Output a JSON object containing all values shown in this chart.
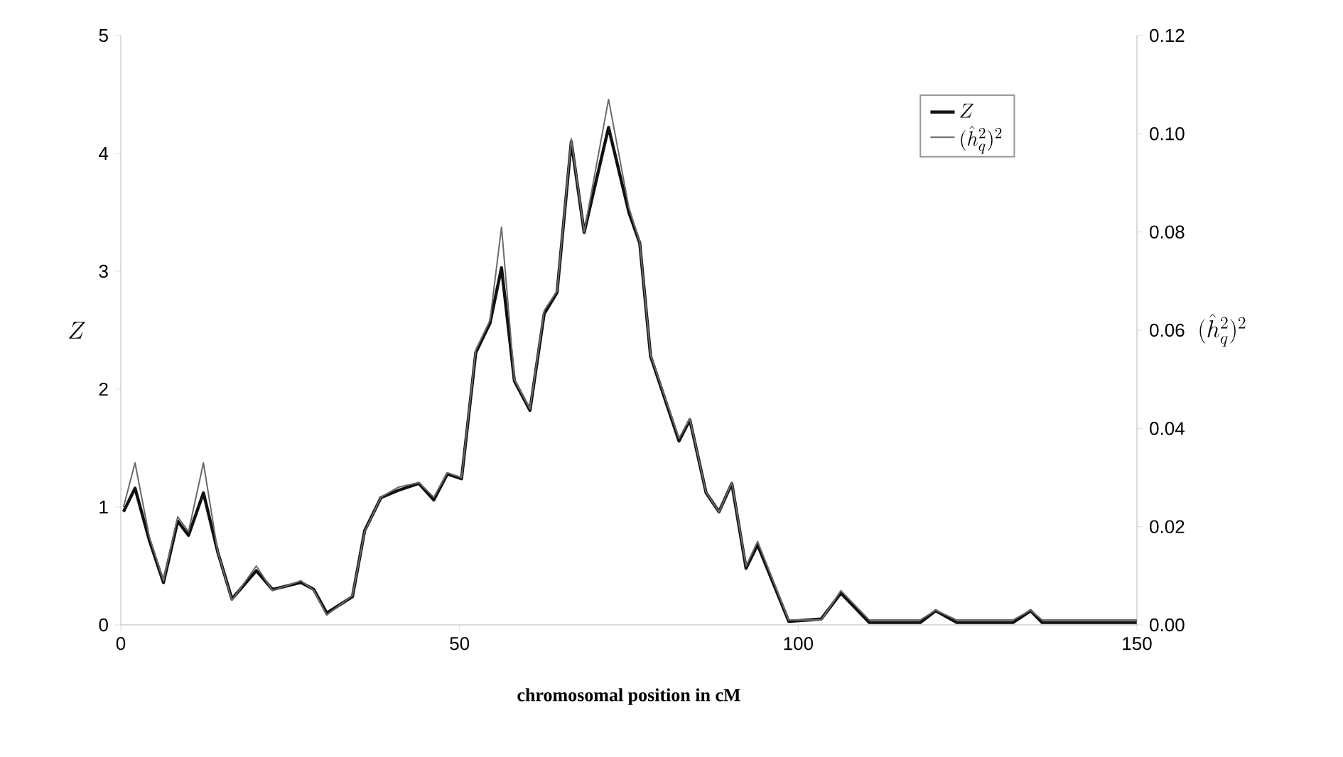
{
  "chart_data": {
    "type": "line",
    "xlabel": "chromosomal position in cM",
    "ylabel": "Z",
    "y2label": "(\\hat{h}_q^2)^2",
    "x": [
      0.4,
      2.1,
      4.2,
      6.3,
      8.4,
      10,
      12.2,
      14.3,
      16.4,
      20,
      22.4,
      26.6,
      28.5,
      30.4,
      34.2,
      36,
      38.4,
      40.9,
      44,
      46.2,
      48.2,
      50.3,
      52.4,
      54.5,
      56.2,
      58.1,
      60.4,
      62.5,
      64.4,
      66.5,
      68.4,
      72,
      75,
      76.6,
      78.2,
      82.4,
      84,
      86.4,
      88.3,
      90.2,
      92.3,
      94,
      98.6,
      103.4,
      106.3,
      110.5,
      118,
      120.3,
      123.4,
      131.7,
      134.3,
      136,
      150
    ],
    "series": [
      {
        "name": "Z",
        "color": "#111111",
        "values": [
          0.96,
          1.16,
          0.72,
          0.36,
          0.88,
          0.76,
          1.12,
          0.62,
          0.22,
          0.46,
          0.3,
          0.36,
          0.3,
          0.1,
          0.24,
          0.8,
          1.08,
          1.14,
          1.2,
          1.06,
          1.28,
          1.24,
          2.31,
          2.56,
          3.03,
          2.07,
          1.82,
          2.64,
          2.82,
          4.1,
          3.33,
          4.22,
          3.5,
          3.24,
          2.28,
          1.56,
          1.74,
          1.12,
          0.96,
          1.2,
          0.48,
          0.68,
          0.03,
          0.05,
          0.27,
          0.02,
          0.02,
          0.12,
          0.02,
          0.02,
          0.12,
          0.02,
          0.02
        ]
      },
      {
        "name": "(\\hat{h}_q^2)^2",
        "color": "#6a6a6a",
        "axis": "y2",
        "values": [
          0.024,
          0.033,
          0.018,
          0.009,
          0.022,
          0.019,
          0.033,
          0.015,
          0.005,
          0.012,
          0.007,
          0.009,
          0.007,
          0.002,
          0.006,
          0.019,
          0.026,
          0.028,
          0.029,
          0.026,
          0.031,
          0.03,
          0.056,
          0.062,
          0.081,
          0.05,
          0.044,
          0.064,
          0.068,
          0.099,
          0.08,
          0.107,
          0.085,
          0.078,
          0.055,
          0.038,
          0.042,
          0.027,
          0.023,
          0.029,
          0.012,
          0.017,
          0.001,
          0.001,
          0.007,
          0.001,
          0.001,
          0.003,
          0.001,
          0.001,
          0.003,
          0.001,
          0.001
        ]
      }
    ],
    "xlim": [
      0,
      150
    ],
    "xticks": [
      0,
      50,
      100,
      150
    ],
    "ylim": [
      0,
      5
    ],
    "yticks": [
      0,
      1,
      2,
      3,
      4,
      5
    ],
    "y2lim": [
      0,
      0.12
    ],
    "y2ticks": [
      {
        "value": 0,
        "label": "0.00"
      },
      {
        "value": 0.02,
        "label": "0.02"
      },
      {
        "value": 0.04,
        "label": "0.04"
      },
      {
        "value": 0.06,
        "label": "0.06"
      },
      {
        "value": 0.08,
        "label": "0.08"
      },
      {
        "value": 0.1,
        "label": "0.10"
      },
      {
        "value": 0.12,
        "label": "0.12"
      }
    ],
    "legend": "top right",
    "grid": false,
    "marker": "none",
    "line_style": "solid"
  }
}
